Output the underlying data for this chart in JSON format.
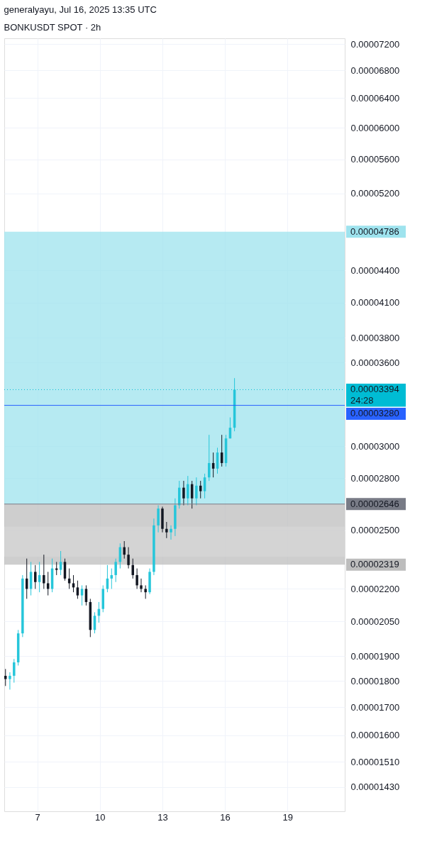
{
  "chart_data": {
    "type": "candlestick",
    "title": "generalyayu, Jul 16, 2025 13:35 UTC",
    "subtitle": "BONKUSDT SPOT · 2h",
    "x": [
      5.47,
      5.68,
      5.88,
      6.08,
      6.29,
      6.49,
      6.69,
      6.9,
      7.1,
      7.31,
      7.51,
      7.71,
      7.92,
      8.12,
      8.32,
      8.53,
      8.73,
      8.93,
      9.14,
      9.34,
      9.54,
      9.75,
      9.95,
      10.15,
      10.36,
      10.56,
      10.76,
      10.97,
      11.17,
      11.37,
      11.58,
      11.78,
      11.98,
      12.19,
      12.39,
      12.59,
      12.8,
      13.0,
      13.2,
      13.41,
      13.61,
      13.81,
      14.02,
      14.22,
      14.42,
      14.63,
      14.83,
      15.03,
      15.24,
      15.44,
      15.64,
      15.85,
      16.05,
      16.25,
      16.46
    ],
    "ohlc": [
      [
        1.821e-05,
        1.848e-05,
        1.781e-05,
        1.808e-05
      ],
      [
        1.808e-05,
        1.835e-05,
        1.767e-05,
        1.821e-05
      ],
      [
        1.821e-05,
        1.889e-05,
        1.794e-05,
        1.875e-05
      ],
      [
        1.875e-05,
        2.012e-05,
        1.862e-05,
        1.997e-05
      ],
      [
        1.997e-05,
        2.267e-05,
        1.981e-05,
        2.25e-05
      ],
      [
        2.25e-05,
        2.35e-05,
        2.153e-05,
        2.2e-05
      ],
      [
        2.2e-05,
        2.333e-05,
        2.169e-05,
        2.283e-05
      ],
      [
        2.283e-05,
        2.317e-05,
        2.2e-05,
        2.233e-05
      ],
      [
        2.233e-05,
        2.333e-05,
        2.184e-05,
        2.267e-05
      ],
      [
        2.267e-05,
        2.37e-05,
        2.2e-05,
        2.227e-05
      ],
      [
        2.227e-05,
        2.283e-05,
        2.169e-05,
        2.2e-05
      ],
      [
        2.2e-05,
        2.35e-05,
        2.184e-05,
        2.3e-05
      ],
      [
        2.3e-05,
        2.333e-05,
        2.267e-05,
        2.293e-05
      ],
      [
        2.293e-05,
        2.389e-05,
        2.267e-05,
        2.333e-05
      ],
      [
        2.333e-05,
        2.35e-05,
        2.24e-05,
        2.25e-05
      ],
      [
        2.25e-05,
        2.3e-05,
        2.2e-05,
        2.227e-05
      ],
      [
        2.227e-05,
        2.267e-05,
        2.184e-05,
        2.207e-05
      ],
      [
        2.207e-05,
        2.24e-05,
        2.153e-05,
        2.169e-05
      ],
      [
        2.169e-05,
        2.217e-05,
        2.122e-05,
        2.2e-05
      ],
      [
        2.2e-05,
        2.217e-05,
        2.122e-05,
        2.138e-05
      ],
      [
        2.138e-05,
        2.153e-05,
        1.981e-05,
        2.012e-05
      ],
      [
        2.012e-05,
        2.091e-05,
        1.997e-05,
        2.075e-05
      ],
      [
        2.075e-05,
        2.138e-05,
        2.044e-05,
        2.106e-05
      ],
      [
        2.106e-05,
        2.217e-05,
        2.091e-05,
        2.2e-05
      ],
      [
        2.2e-05,
        2.317e-05,
        2.184e-05,
        2.25e-05
      ],
      [
        2.25e-05,
        2.3e-05,
        2.2e-05,
        2.267e-05
      ],
      [
        2.267e-05,
        2.35e-05,
        2.233e-05,
        2.333e-05
      ],
      [
        2.333e-05,
        2.429e-05,
        2.3e-05,
        2.409e-05
      ],
      [
        2.409e-05,
        2.441e-05,
        2.35e-05,
        2.37e-05
      ],
      [
        2.37e-05,
        2.409e-05,
        2.3e-05,
        2.317e-05
      ],
      [
        2.317e-05,
        2.35e-05,
        2.25e-05,
        2.267e-05
      ],
      [
        2.267e-05,
        2.3e-05,
        2.2e-05,
        2.217e-05
      ],
      [
        2.217e-05,
        2.25e-05,
        2.184e-05,
        2.2e-05
      ],
      [
        2.2e-05,
        2.217e-05,
        2.153e-05,
        2.184e-05
      ],
      [
        2.184e-05,
        2.3e-05,
        2.175e-05,
        2.283e-05
      ],
      [
        2.283e-05,
        2.564e-05,
        2.267e-05,
        2.526e-05
      ],
      [
        2.526e-05,
        2.639e-05,
        2.488e-05,
        2.62e-05
      ],
      [
        2.62e-05,
        2.631e-05,
        2.488e-05,
        2.507e-05
      ],
      [
        2.507e-05,
        2.545e-05,
        2.457e-05,
        2.488e-05
      ],
      [
        2.488e-05,
        2.526e-05,
        2.449e-05,
        2.507e-05
      ],
      [
        2.507e-05,
        2.679e-05,
        2.468e-05,
        2.639e-05
      ],
      [
        2.639e-05,
        2.783e-05,
        2.62e-05,
        2.742e-05
      ],
      [
        2.742e-05,
        2.783e-05,
        2.639e-05,
        2.679e-05
      ],
      [
        2.679e-05,
        2.813e-05,
        2.639e-05,
        2.763e-05
      ],
      [
        2.763e-05,
        2.783e-05,
        2.62e-05,
        2.679e-05
      ],
      [
        2.679e-05,
        2.804e-05,
        2.639e-05,
        2.754e-05
      ],
      [
        2.754e-05,
        2.783e-05,
        2.679e-05,
        2.721e-05
      ],
      [
        2.721e-05,
        2.827e-05,
        2.679e-05,
        2.804e-05
      ],
      [
        2.804e-05,
        3.076e-05,
        2.783e-05,
        2.893e-05
      ],
      [
        2.893e-05,
        2.96e-05,
        2.804e-05,
        2.858e-05
      ],
      [
        2.858e-05,
        2.991e-05,
        2.827e-05,
        2.96e-05
      ],
      [
        2.96e-05,
        3.076e-05,
        2.871e-05,
        2.893e-05
      ],
      [
        2.893e-05,
        3.076e-05,
        2.871e-05,
        3.052e-05
      ],
      [
        3.052e-05,
        3.195e-05,
        3.052e-05,
        3.124e-05
      ],
      [
        3.124e-05,
        3.48e-05,
        3.1e-05,
        3.394e-05
      ]
    ],
    "colors": [
      "#131722",
      "#26c6da",
      "#26c6da",
      "#26c6da",
      "#26c6da",
      "#131722",
      "#26c6da",
      "#131722",
      "#26c6da",
      "#131722",
      "#131722",
      "#26c6da",
      "#131722",
      "#26c6da",
      "#131722",
      "#131722",
      "#131722",
      "#131722",
      "#26c6da",
      "#131722",
      "#131722",
      "#26c6da",
      "#26c6da",
      "#26c6da",
      "#26c6da",
      "#26c6da",
      "#26c6da",
      "#26c6da",
      "#131722",
      "#131722",
      "#131722",
      "#131722",
      "#131722",
      "#131722",
      "#26c6da",
      "#26c6da",
      "#26c6da",
      "#131722",
      "#131722",
      "#26c6da",
      "#26c6da",
      "#26c6da",
      "#131722",
      "#26c6da",
      "#131722",
      "#26c6da",
      "#131722",
      "#26c6da",
      "#26c6da",
      "#131722",
      "#26c6da",
      "#131722",
      "#26c6da",
      "#26c6da",
      "#26c6da"
    ],
    "log": true,
    "grid": true,
    "xlim": [
      5.41,
      21.75
    ],
    "xticks": [
      7,
      10,
      13,
      16,
      19
    ],
    "ylim": [
      1.356e-05,
      7.29e-05
    ],
    "yticks": [
      {
        "value": 7.2e-05,
        "label": "0.00007200"
      },
      {
        "value": 6.8e-05,
        "label": "0.00006800"
      },
      {
        "value": 6.4e-05,
        "label": "0.00006400"
      },
      {
        "value": 6e-05,
        "label": "0.00006000"
      },
      {
        "value": 5.6e-05,
        "label": "0.00005600"
      },
      {
        "value": 5.2e-05,
        "label": "0.00005200"
      },
      {
        "value": 4.4e-05,
        "label": "0.00004400"
      },
      {
        "value": 4.1e-05,
        "label": "0.00004100"
      },
      {
        "value": 3.8e-05,
        "label": "0.00003800"
      },
      {
        "value": 3.6e-05,
        "label": "0.00003600"
      },
      {
        "value": 3e-05,
        "label": "0.00003000"
      },
      {
        "value": 2.8e-05,
        "label": "0.00002800"
      },
      {
        "value": 2.5e-05,
        "label": "0.00002500"
      },
      {
        "value": 2.2e-05,
        "label": "0.00002200"
      },
      {
        "value": 2.05e-05,
        "label": "0.00002050"
      },
      {
        "value": 1.9e-05,
        "label": "0.00001900"
      },
      {
        "value": 1.8e-05,
        "label": "0.00001800"
      },
      {
        "value": 1.7e-05,
        "label": "0.00001700"
      },
      {
        "value": 1.6e-05,
        "label": "0.00001600"
      },
      {
        "value": 1.51e-05,
        "label": "0.00001510"
      },
      {
        "value": 1.43e-05,
        "label": "0.00001430"
      }
    ],
    "bands": [
      {
        "axis": "y",
        "from": 2.646e-05,
        "to": 4.786e-05,
        "label": "0.00004786",
        "color": "#9ee3ee"
      },
      {
        "axis": "y",
        "from": 2.319e-05,
        "to": 2.646e-05,
        "label": "0.00002319",
        "color": "#bdbdbd"
      },
      {
        "axis": "y",
        "from": 2.36e-05,
        "to": 2.52e-05,
        "color": "#d6d6d6"
      }
    ],
    "ref_lines": [
      {
        "axis": "y",
        "value": 3.394e-05,
        "label": "0.00003394",
        "color": "#00bcd4",
        "line_style": "dotted"
      },
      {
        "axis": "y",
        "value": 3.28e-05,
        "label": "0.00003280",
        "color": "#2962ff",
        "line_style": "solid"
      },
      {
        "axis": "y",
        "value": 2.646e-05,
        "label": "0.00002646",
        "color": "#787b86",
        "line_style": "solid"
      }
    ],
    "annotations": [
      "24:28"
    ]
  }
}
